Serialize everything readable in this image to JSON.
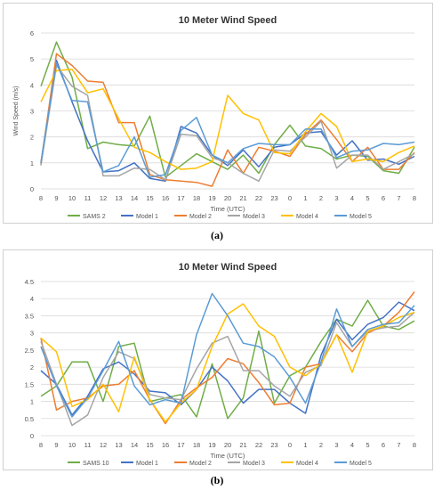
{
  "chart_data": [
    {
      "type": "line",
      "panel_label": "a",
      "title": "10 Meter Wind Speed",
      "xlabel": "Time (UTC)",
      "ylabel": "Wind Speed (m/s)",
      "ylim": [
        0,
        6
      ],
      "yticks": [
        "0",
        "1",
        "2",
        "3",
        "4",
        "5",
        "6"
      ],
      "categories": [
        "8",
        "9",
        "10",
        "11",
        "12",
        "13",
        "14",
        "15",
        "16",
        "17",
        "18",
        "19",
        "20",
        "21",
        "22",
        "23",
        "0",
        "1",
        "2",
        "3",
        "4",
        "5",
        "6",
        "7",
        "8"
      ],
      "grid": true,
      "legend": "bottom",
      "series": [
        {
          "name": "SAMS 2",
          "color": "#70ad47",
          "values": [
            3.95,
            5.65,
            4.3,
            1.55,
            1.8,
            1.7,
            1.65,
            2.8,
            0.45,
            0.9,
            1.35,
            1.05,
            0.75,
            1.3,
            0.6,
            1.7,
            2.45,
            1.65,
            1.55,
            1.15,
            1.3,
            1.25,
            0.7,
            0.6,
            1.6
          ]
        },
        {
          "name": "Model 1",
          "color": "#4472c4",
          "values": [
            1.0,
            4.95,
            3.35,
            1.85,
            0.65,
            0.7,
            1.0,
            0.4,
            0.3,
            2.4,
            2.15,
            1.3,
            0.9,
            1.5,
            0.85,
            1.6,
            1.7,
            2.15,
            2.2,
            1.3,
            1.85,
            1.1,
            1.15,
            0.95,
            1.25
          ]
        },
        {
          "name": "Model 2",
          "color": "#ed7d31",
          "values": [
            0.95,
            5.2,
            4.75,
            4.15,
            4.1,
            2.55,
            2.55,
            0.55,
            0.35,
            0.3,
            0.25,
            0.1,
            1.5,
            0.6,
            1.6,
            1.45,
            1.25,
            2.1,
            2.65,
            1.9,
            1.05,
            1.6,
            0.75,
            0.75,
            1.4
          ]
        },
        {
          "name": "Model 3",
          "color": "#a5a5a5",
          "values": [
            0.9,
            4.75,
            3.95,
            3.6,
            0.5,
            0.5,
            0.8,
            0.75,
            0.35,
            2.1,
            2.05,
            1.2,
            1.0,
            0.6,
            0.3,
            1.5,
            1.45,
            2.0,
            2.6,
            0.8,
            1.3,
            1.3,
            0.75,
            1.05,
            1.35
          ]
        },
        {
          "name": "Model 4",
          "color": "#ffc000",
          "values": [
            3.35,
            4.55,
            4.6,
            3.7,
            3.85,
            2.7,
            1.6,
            1.4,
            1.05,
            0.75,
            0.8,
            1.05,
            3.6,
            2.9,
            2.65,
            1.4,
            1.35,
            2.2,
            2.9,
            2.4,
            1.05,
            1.15,
            1.05,
            1.4,
            1.65
          ]
        },
        {
          "name": "Model 5",
          "color": "#5b9bd5",
          "values": [
            1.0,
            4.85,
            3.4,
            3.35,
            0.65,
            0.9,
            2.0,
            0.45,
            0.55,
            2.25,
            2.75,
            1.3,
            1.0,
            1.55,
            1.75,
            1.7,
            1.7,
            2.3,
            2.3,
            1.2,
            1.45,
            1.5,
            1.75,
            1.7,
            1.8
          ]
        }
      ]
    },
    {
      "type": "line",
      "panel_label": "b",
      "title": "10 Meter Wind Speed",
      "xlabel": "Time (UTC)",
      "ylabel": "",
      "ylim": [
        0,
        4.5
      ],
      "yticks": [
        "0",
        "0.5",
        "1",
        "1.5",
        "2",
        "2.5",
        "3",
        "3.5",
        "4",
        "4.5"
      ],
      "categories": [
        "8",
        "9",
        "10",
        "11",
        "12",
        "13",
        "14",
        "15",
        "16",
        "17",
        "18",
        "19",
        "20",
        "21",
        "22",
        "23",
        "0",
        "1",
        "2",
        "3",
        "4",
        "5",
        "6",
        "7",
        "8"
      ],
      "grid": true,
      "legend": "bottom",
      "series": [
        {
          "name": "SAMS 10",
          "color": "#70ad47",
          "values": [
            1.15,
            1.45,
            2.15,
            2.15,
            1.0,
            2.6,
            2.7,
            1.0,
            1.1,
            1.2,
            0.55,
            2.1,
            0.5,
            1.1,
            3.05,
            0.95,
            1.75,
            2.0,
            2.75,
            3.4,
            3.2,
            3.95,
            3.2,
            3.1,
            3.35
          ]
        },
        {
          "name": "Model 1",
          "color": "#4472c4",
          "values": [
            1.9,
            1.5,
            0.6,
            1.15,
            1.95,
            2.15,
            1.8,
            1.3,
            1.25,
            0.9,
            1.35,
            2.0,
            1.6,
            0.95,
            1.35,
            1.35,
            0.95,
            0.65,
            2.35,
            3.4,
            2.8,
            3.25,
            3.45,
            3.9,
            3.65
          ]
        },
        {
          "name": "Model 2",
          "color": "#ed7d31",
          "values": [
            2.85,
            0.75,
            1.0,
            1.1,
            1.45,
            1.5,
            1.9,
            1.05,
            0.35,
            1.05,
            1.4,
            1.7,
            2.25,
            2.1,
            1.55,
            0.9,
            0.95,
            2.0,
            2.1,
            2.95,
            2.45,
            3.0,
            3.2,
            3.6,
            4.2
          ]
        },
        {
          "name": "Model 3",
          "color": "#a5a5a5",
          "values": [
            2.75,
            1.5,
            0.3,
            0.6,
            1.7,
            2.45,
            2.25,
            1.2,
            1.1,
            1.05,
            1.95,
            2.7,
            2.9,
            1.9,
            1.9,
            1.45,
            1.15,
            1.85,
            2.05,
            3.3,
            2.6,
            3.05,
            3.15,
            3.2,
            3.6
          ]
        },
        {
          "name": "Model 4",
          "color": "#ffc000",
          "values": [
            2.85,
            2.45,
            0.85,
            1.05,
            1.5,
            0.7,
            2.3,
            1.05,
            0.4,
            0.95,
            1.35,
            2.6,
            3.55,
            3.85,
            3.2,
            2.9,
            2.0,
            1.75,
            2.1,
            2.95,
            1.85,
            3.05,
            3.2,
            3.45,
            3.6
          ]
        },
        {
          "name": "Model 5",
          "color": "#5b9bd5",
          "values": [
            2.6,
            1.45,
            0.55,
            1.1,
            1.9,
            2.75,
            1.45,
            0.9,
            1.05,
            0.95,
            2.95,
            4.15,
            3.5,
            2.7,
            2.6,
            2.3,
            1.7,
            0.95,
            2.15,
            3.7,
            2.6,
            3.1,
            3.25,
            3.3,
            3.8
          ]
        }
      ]
    }
  ],
  "captions": {
    "a": "(a)",
    "b": "(b)"
  }
}
